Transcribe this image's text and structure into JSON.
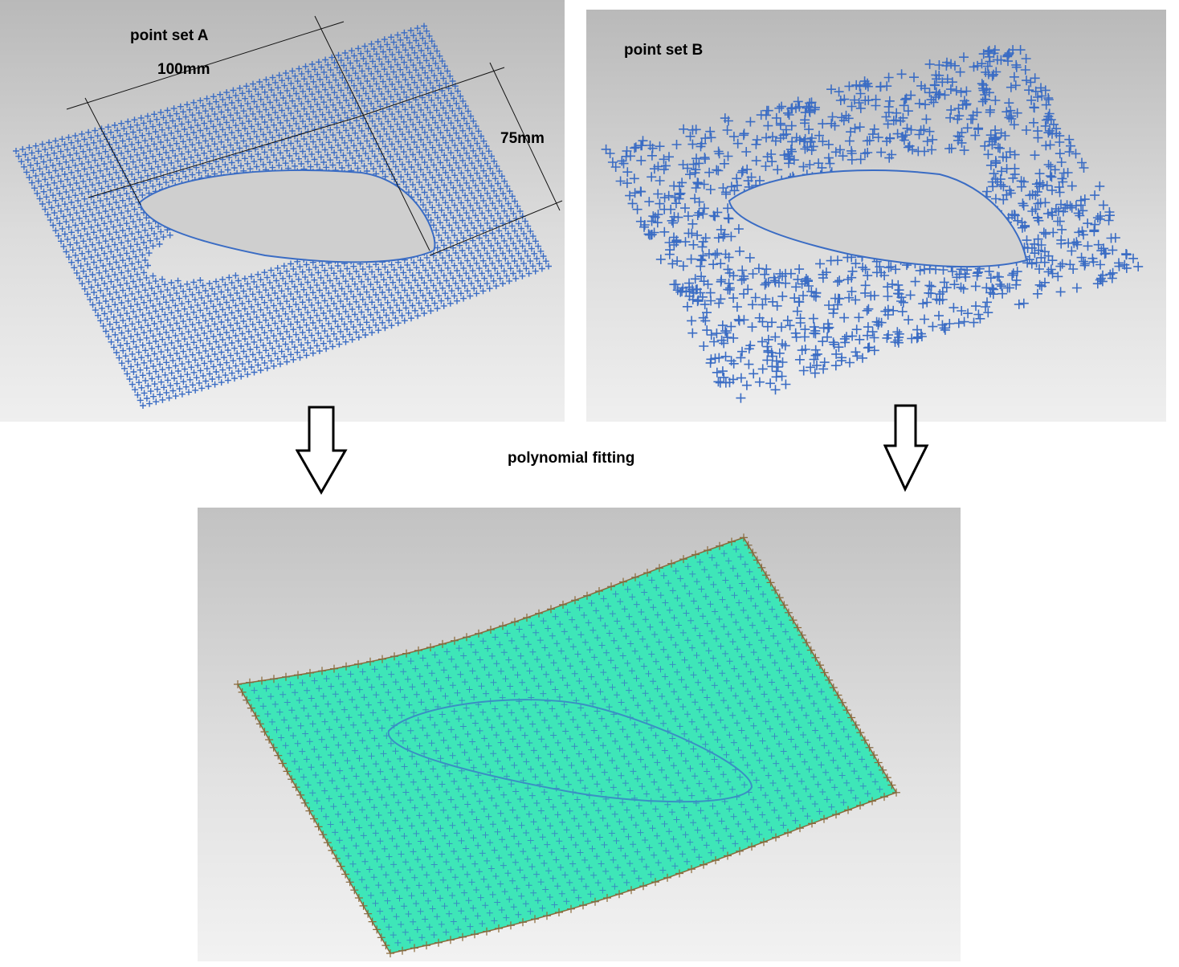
{
  "panel_a": {
    "title": "point set A",
    "dim_width": "100mm",
    "dim_height": "75mm",
    "point_color": "#3a6cc4"
  },
  "panel_b": {
    "title": "point set B",
    "point_color": "#3a6cc4"
  },
  "process_label": "polynomial fitting",
  "panel_c": {
    "surface_color": "#3ee6b8",
    "grid_color": "#3a6cc4",
    "edge_color": "#8a6a3a"
  }
}
